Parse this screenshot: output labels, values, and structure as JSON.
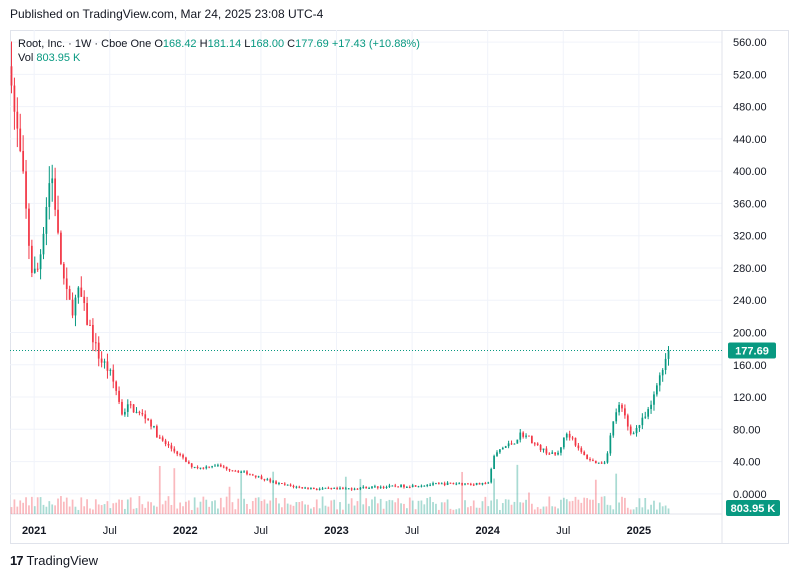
{
  "header": {
    "published": "Published on TradingView.com, Mar 24, 2025 23:08 UTC-4"
  },
  "legend": {
    "symbol": "Root, Inc. · 1W · Cboe One",
    "o_label": "O",
    "o": "168.42",
    "h_label": "H",
    "h": "181.14",
    "l_label": "L",
    "l": "168.00",
    "c_label": "C",
    "c": "177.69",
    "change": "+17.43 (+10.88%)",
    "vol_label": "Vol",
    "vol": "803.95 K"
  },
  "footer": {
    "logo_mark": "17",
    "brand": "TradingView"
  },
  "colors": {
    "up": "#089981",
    "down": "#f23645",
    "grid": "#f0f3fa",
    "text": "#131722"
  },
  "chart_data": {
    "type": "candlestick",
    "symbol": "Root, Inc.",
    "interval": "1W",
    "exchange": "Cboe One",
    "ylim": [
      -25,
      575
    ],
    "y_ticks": [
      "560.00",
      "520.00",
      "480.00",
      "440.00",
      "400.00",
      "360.00",
      "320.00",
      "280.00",
      "240.00",
      "200.00",
      "160.00",
      "120.00",
      "80.00",
      "40.00",
      "0.0000"
    ],
    "x_ticks": [
      {
        "label": "2021",
        "t": 2021.0
      },
      {
        "label": "Jul",
        "t": 2021.5
      },
      {
        "label": "2022",
        "t": 2022.0
      },
      {
        "label": "Jul",
        "t": 2022.5
      },
      {
        "label": "2023",
        "t": 2023.0
      },
      {
        "label": "Jul",
        "t": 2023.5
      },
      {
        "label": "2024",
        "t": 2024.0
      },
      {
        "label": "Jul",
        "t": 2024.5
      },
      {
        "label": "2025",
        "t": 2025.0
      }
    ],
    "xlim": [
      2020.84,
      2025.55
    ],
    "last_price": 177.69,
    "last_price_label": "177.69",
    "last_volume_label": "803.95 K",
    "price_anchors": [
      [
        2020.85,
        530
      ],
      [
        2020.87,
        470
      ],
      [
        2020.9,
        430
      ],
      [
        2020.93,
        380
      ],
      [
        2020.96,
        320
      ],
      [
        2020.99,
        270
      ],
      [
        2021.03,
        280
      ],
      [
        2021.06,
        330
      ],
      [
        2021.08,
        360
      ],
      [
        2021.11,
        400
      ],
      [
        2021.13,
        380
      ],
      [
        2021.16,
        310
      ],
      [
        2021.19,
        270
      ],
      [
        2021.22,
        240
      ],
      [
        2021.25,
        230
      ],
      [
        2021.3,
        250
      ],
      [
        2021.34,
        220
      ],
      [
        2021.38,
        200
      ],
      [
        2021.41,
        180
      ],
      [
        2021.44,
        165
      ],
      [
        2021.47,
        160
      ],
      [
        2021.5,
        150
      ],
      [
        2021.54,
        130
      ],
      [
        2021.58,
        100
      ],
      [
        2021.63,
        110
      ],
      [
        2021.68,
        100
      ],
      [
        2021.74,
        95
      ],
      [
        2021.78,
        85
      ],
      [
        2021.82,
        70
      ],
      [
        2021.88,
        60
      ],
      [
        2021.95,
        50
      ],
      [
        2022.03,
        35
      ],
      [
        2022.1,
        32
      ],
      [
        2022.2,
        36
      ],
      [
        2022.3,
        30
      ],
      [
        2022.4,
        26
      ],
      [
        2022.5,
        20
      ],
      [
        2022.6,
        13
      ],
      [
        2022.75,
        8
      ],
      [
        2022.9,
        6
      ],
      [
        2023.05,
        6
      ],
      [
        2023.2,
        8
      ],
      [
        2023.35,
        9
      ],
      [
        2023.5,
        10
      ],
      [
        2023.65,
        12
      ],
      [
        2023.8,
        13
      ],
      [
        2023.95,
        12
      ],
      [
        2024.0,
        12
      ],
      [
        2024.04,
        45
      ],
      [
        2024.08,
        55
      ],
      [
        2024.13,
        60
      ],
      [
        2024.18,
        65
      ],
      [
        2024.22,
        75
      ],
      [
        2024.27,
        70
      ],
      [
        2024.32,
        60
      ],
      [
        2024.36,
        55
      ],
      [
        2024.41,
        50
      ],
      [
        2024.46,
        48
      ],
      [
        2024.52,
        75
      ],
      [
        2024.56,
        70
      ],
      [
        2024.6,
        55
      ],
      [
        2024.65,
        45
      ],
      [
        2024.7,
        40
      ],
      [
        2024.74,
        38
      ],
      [
        2024.78,
        40
      ],
      [
        2024.82,
        80
      ],
      [
        2024.86,
        110
      ],
      [
        2024.9,
        100
      ],
      [
        2024.94,
        75
      ],
      [
        2024.98,
        80
      ],
      [
        2025.02,
        90
      ],
      [
        2025.06,
        100
      ],
      [
        2025.1,
        120
      ],
      [
        2025.14,
        150
      ],
      [
        2025.18,
        170
      ],
      [
        2025.2,
        178
      ]
    ]
  }
}
